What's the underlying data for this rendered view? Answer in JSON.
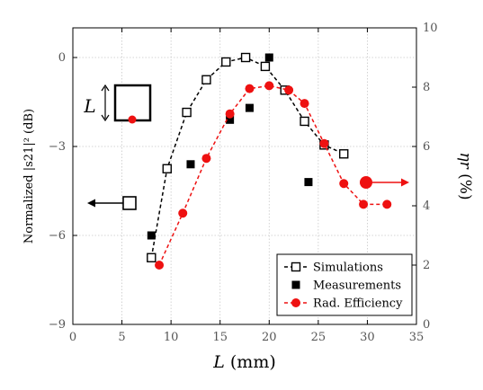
{
  "chart_data": {
    "type": "line",
    "xlabel": "L (mm)",
    "ylabel_left": "Normalized |s21|² (dB)",
    "ylabel_right": "ηr (%)",
    "xlim": [
      0,
      35
    ],
    "ylim_left": [
      -9,
      1.0
    ],
    "ylim_right": [
      0,
      10
    ],
    "xticks": [
      0,
      5,
      10,
      15,
      20,
      25,
      30,
      35
    ],
    "yticks_left": [
      0,
      -3,
      -6,
      -9
    ],
    "yticks_right": [
      0,
      2,
      4,
      6,
      8,
      10
    ],
    "grid": true,
    "legend_position": "bottom-right",
    "series": [
      {
        "name": "Simulations",
        "axis": "left",
        "marker": "open-square",
        "line": "dashed",
        "color": "#000000",
        "x": [
          8,
          9.6,
          11.6,
          13.6,
          15.6,
          17.6,
          19.6,
          21.6,
          23.6,
          25.6,
          27.6
        ],
        "y": [
          -6.75,
          -3.75,
          -1.85,
          -0.75,
          -0.15,
          0.0,
          -0.3,
          -1.1,
          -2.15,
          -2.95,
          -3.25
        ]
      },
      {
        "name": "Measurements",
        "axis": "left",
        "marker": "filled-square",
        "line": "none",
        "color": "#000000",
        "x": [
          8,
          12,
          16,
          18,
          20,
          24
        ],
        "y": [
          -6.0,
          -3.6,
          -2.1,
          -1.7,
          0.0,
          -4.2
        ]
      },
      {
        "name": "Rad. Efficiency",
        "axis": "right",
        "marker": "filled-circle",
        "line": "dashed",
        "color": "#ee1111",
        "x": [
          8.8,
          11.2,
          13.6,
          16.0,
          18.0,
          20.0,
          22.0,
          23.6,
          25.6,
          27.6,
          29.6,
          32.0
        ],
        "y": [
          2.0,
          3.75,
          5.6,
          7.1,
          7.95,
          8.05,
          7.9,
          7.45,
          6.1,
          4.75,
          4.05,
          4.05
        ]
      }
    ],
    "annotations": {
      "inset_label": "L"
    }
  }
}
